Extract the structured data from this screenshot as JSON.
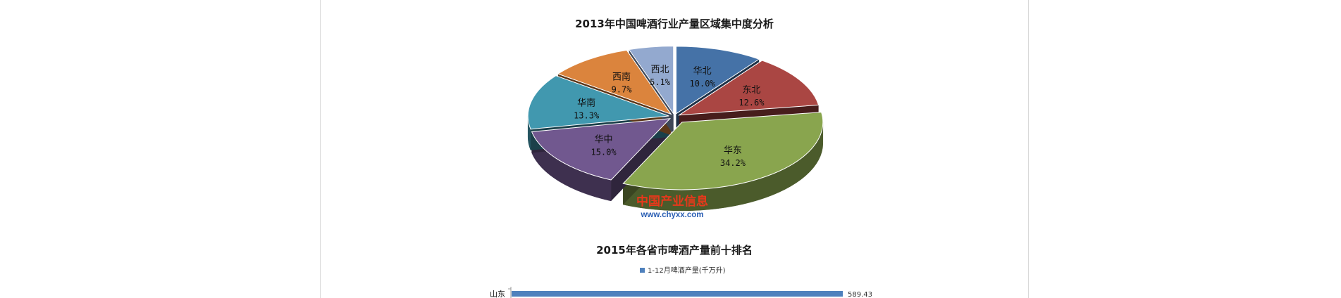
{
  "chart_data": [
    {
      "type": "pie",
      "title": "2013年中国啤酒行业产量区域集中度分析",
      "categories": [
        "华北",
        "东北",
        "华东",
        "华中",
        "华南",
        "西南",
        "西北"
      ],
      "values": [
        10.0,
        12.6,
        34.2,
        15.0,
        13.3,
        9.7,
        5.1
      ],
      "value_labels": [
        "10.0%",
        "12.6%",
        "34.2%",
        "15.0%",
        "13.3%",
        "9.7%",
        "5.1%"
      ],
      "colors": [
        "#4572a7",
        "#aa4643",
        "#89a54e",
        "#71588f",
        "#4198af",
        "#db843d",
        "#93a9cf"
      ],
      "style": "3d-exploded",
      "legend": "none"
    },
    {
      "type": "bar",
      "orientation": "horizontal",
      "title": "2015年各省市啤酒产量前十排名",
      "categories": [
        "山东"
      ],
      "series": [
        {
          "name": "1-12月啤酒产量(千万升)",
          "values": [
            589.43
          ],
          "value_labels": [
            "589.43"
          ],
          "color": "#4f81bd"
        }
      ],
      "legend": "top"
    }
  ],
  "watermark": {
    "text_cn": "中国产业信息",
    "url": "www.chyxx.com",
    "color_cn": "#e8381b",
    "color_url": "#2b5fb4"
  }
}
